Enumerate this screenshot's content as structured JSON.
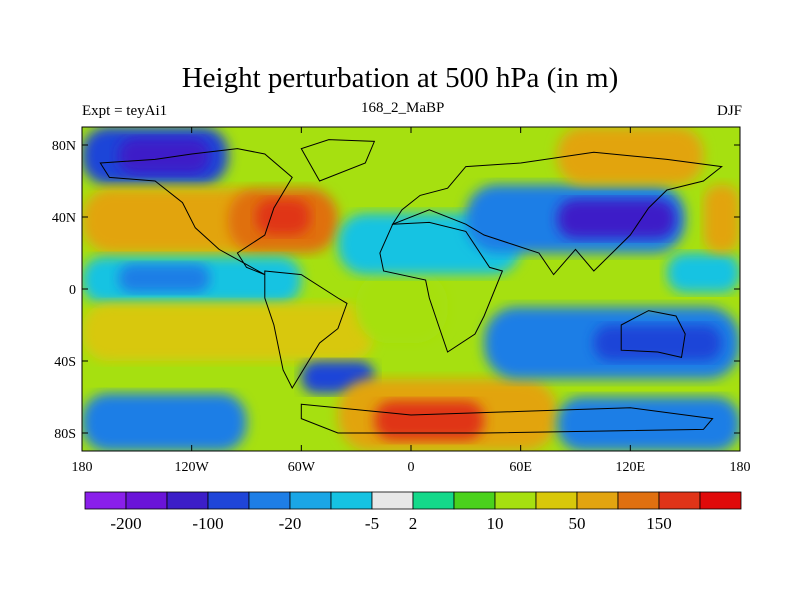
{
  "chart_data": {
    "type": "heatmap",
    "title": "Height perturbation at 500 hPa (in m)",
    "left_string": "Expt = teyAi1",
    "center_string": "168_2_MaBP",
    "right_string": "DJF",
    "x_range": [
      -180,
      180
    ],
    "y_range": [
      -90,
      90
    ],
    "x_ticks": [
      {
        "value": -180,
        "label": "180"
      },
      {
        "value": -120,
        "label": "120W"
      },
      {
        "value": -60,
        "label": "60W"
      },
      {
        "value": 0,
        "label": "0"
      },
      {
        "value": 60,
        "label": "60E"
      },
      {
        "value": 120,
        "label": "120E"
      },
      {
        "value": 180,
        "label": "180"
      }
    ],
    "y_ticks": [
      {
        "value": 80,
        "label": "80N"
      },
      {
        "value": 40,
        "label": "40N"
      },
      {
        "value": 0,
        "label": "0"
      },
      {
        "value": -40,
        "label": "40S"
      },
      {
        "value": -80,
        "label": "80S"
      }
    ],
    "colorbar": {
      "colors": [
        "#8a1fea",
        "#6a14d8",
        "#3c1ec8",
        "#1f45d8",
        "#1e7ee6",
        "#1aa6e6",
        "#16c3e2",
        "#e8e8e8",
        "#14d98a",
        "#4ad21c",
        "#a6e010",
        "#d8c80a",
        "#e2a410",
        "#e07010",
        "#e03418",
        "#e00a0a"
      ],
      "labels": [
        {
          "boundary": 1,
          "text": "-200"
        },
        {
          "boundary": 3,
          "text": "-100"
        },
        {
          "boundary": 5,
          "text": "-20"
        },
        {
          "boundary": 7,
          "text": "-5"
        },
        {
          "boundary": 8,
          "text": "2"
        },
        {
          "boundary": 10,
          "text": "10"
        },
        {
          "boundary": 12,
          "text": "50"
        },
        {
          "boundary": 14,
          "text": "150"
        }
      ]
    },
    "field_regions": [
      {
        "lon": [
          -180,
          180
        ],
        "lat": [
          -90,
          90
        ],
        "level": 10
      },
      {
        "lon": [
          -180,
          -100
        ],
        "lat": [
          58,
          90
        ],
        "level": 3
      },
      {
        "lon": [
          -160,
          -110
        ],
        "lat": [
          64,
          84
        ],
        "level": 2
      },
      {
        "lon": [
          -180,
          -80
        ],
        "lat": [
          20,
          56
        ],
        "level": 12
      },
      {
        "lon": [
          -100,
          -40
        ],
        "lat": [
          20,
          56
        ],
        "level": 13
      },
      {
        "lon": [
          -85,
          -55
        ],
        "lat": [
          30,
          50
        ],
        "level": 14
      },
      {
        "lon": [
          -180,
          -60
        ],
        "lat": [
          -8,
          18
        ],
        "level": 6
      },
      {
        "lon": [
          -160,
          -110
        ],
        "lat": [
          -2,
          14
        ],
        "level": 4
      },
      {
        "lon": [
          -180,
          -20
        ],
        "lat": [
          -40,
          -8
        ],
        "level": 11
      },
      {
        "lon": [
          -30,
          20
        ],
        "lat": [
          -30,
          10
        ],
        "level": 10
      },
      {
        "lon": [
          -60,
          -20
        ],
        "lat": [
          -58,
          -40
        ],
        "level": 3
      },
      {
        "lon": [
          -180,
          -90
        ],
        "lat": [
          -90,
          -58
        ],
        "level": 4
      },
      {
        "lon": [
          -40,
          80
        ],
        "lat": [
          -90,
          -50
        ],
        "level": 12
      },
      {
        "lon": [
          -20,
          40
        ],
        "lat": [
          -84,
          -62
        ],
        "level": 14
      },
      {
        "lon": [
          80,
          180
        ],
        "lat": [
          -90,
          -60
        ],
        "level": 4
      },
      {
        "lon": [
          -40,
          60
        ],
        "lat": [
          8,
          42
        ],
        "level": 6
      },
      {
        "lon": [
          30,
          150
        ],
        "lat": [
          20,
          58
        ],
        "level": 4
      },
      {
        "lon": [
          80,
          145
        ],
        "lat": [
          28,
          50
        ],
        "level": 2
      },
      {
        "lon": [
          80,
          160
        ],
        "lat": [
          58,
          90
        ],
        "level": 12
      },
      {
        "lon": [
          40,
          180
        ],
        "lat": [
          -50,
          -10
        ],
        "level": 4
      },
      {
        "lon": [
          100,
          170
        ],
        "lat": [
          -40,
          -20
        ],
        "level": 3
      },
      {
        "lon": [
          140,
          180
        ],
        "lat": [
          -2,
          20
        ],
        "level": 6
      },
      {
        "lon": [
          160,
          180
        ],
        "lat": [
          20,
          58
        ],
        "level": 12
      }
    ]
  }
}
